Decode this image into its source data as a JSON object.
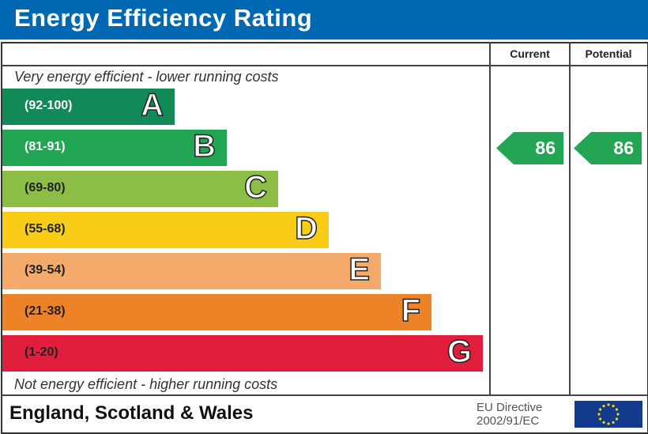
{
  "header": {
    "title": "Energy Efficiency Rating"
  },
  "columns": {
    "current": "Current",
    "potential": "Potential"
  },
  "captions": {
    "top": "Very energy efficient - lower running costs",
    "bottom": "Not energy efficient - higher running costs"
  },
  "bands": [
    {
      "range": "(92-100)",
      "letter": "A",
      "color": "#128a57"
    },
    {
      "range": "(81-91)",
      "letter": "B",
      "color": "#22a653"
    },
    {
      "range": "(69-80)",
      "letter": "C",
      "color": "#8cbd44"
    },
    {
      "range": "(55-68)",
      "letter": "D",
      "color": "#f8cc17"
    },
    {
      "range": "(39-54)",
      "letter": "E",
      "color": "#f3aa6b"
    },
    {
      "range": "(21-38)",
      "letter": "F",
      "color": "#ee8226"
    },
    {
      "range": "(1-20)",
      "letter": "G",
      "color": "#e21e3d"
    }
  ],
  "ratings": {
    "current": {
      "value": "86",
      "band": "B",
      "color": "#22a653"
    },
    "potential": {
      "value": "86",
      "band": "B",
      "color": "#22a653"
    }
  },
  "footer": {
    "country": "England, Scotland & Wales",
    "directive_line1": "EU Directive",
    "directive_line2": "2002/91/EC",
    "flag": "eu-flag-icon"
  }
}
